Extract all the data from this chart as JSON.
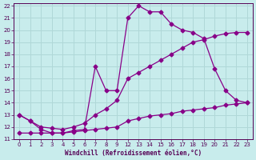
{
  "xlabel": "Windchill (Refroidissement éolien,°C)",
  "bg_color": "#c8ecec",
  "grid_color": "#b0d8d8",
  "line_color": "#880088",
  "xlim": [
    -0.5,
    23.5
  ],
  "ylim": [
    11,
    22.2
  ],
  "yticks": [
    11,
    12,
    13,
    14,
    15,
    16,
    17,
    18,
    19,
    20,
    21,
    22
  ],
  "xtick_positions": [
    0,
    1,
    2,
    3,
    4,
    5,
    6,
    7,
    8,
    9,
    12,
    13,
    14,
    15,
    16,
    17,
    18,
    19,
    20,
    21,
    22,
    23
  ],
  "xtick_labels": [
    "0",
    "1",
    "2",
    "3",
    "4",
    "5",
    "6",
    "7",
    "8",
    "9",
    "12",
    "13",
    "14",
    "15",
    "16",
    "17",
    "18",
    "19",
    "20",
    "21",
    "22",
    "23"
  ],
  "line1_x": [
    0,
    1,
    2,
    3,
    4,
    5,
    6,
    7,
    8,
    9,
    12,
    13,
    14,
    15,
    16,
    17,
    18,
    19,
    20,
    21,
    22,
    23
  ],
  "line1_y": [
    13.0,
    12.5,
    11.8,
    11.5,
    11.5,
    11.7,
    11.8,
    17.0,
    15.0,
    15.0,
    21.0,
    22.0,
    21.5,
    21.5,
    20.5,
    20.0,
    19.8,
    19.3,
    16.8,
    15.0,
    14.2,
    14.0
  ],
  "line2_x": [
    0,
    1,
    2,
    3,
    4,
    5,
    6,
    7,
    8,
    9,
    12,
    13,
    14,
    15,
    16,
    17,
    18,
    19,
    20,
    21,
    22,
    23
  ],
  "line2_y": [
    13.0,
    12.5,
    12.0,
    11.9,
    11.8,
    12.0,
    12.3,
    13.0,
    13.5,
    14.2,
    16.0,
    16.5,
    17.0,
    17.5,
    18.0,
    18.5,
    19.0,
    19.2,
    19.5,
    19.7,
    19.8,
    19.8
  ],
  "line3_x": [
    0,
    1,
    2,
    3,
    4,
    5,
    6,
    7,
    8,
    9,
    12,
    13,
    14,
    15,
    16,
    17,
    18,
    19,
    20,
    21,
    22,
    23
  ],
  "line3_y": [
    11.5,
    11.5,
    11.5,
    11.5,
    11.5,
    11.6,
    11.7,
    11.8,
    11.9,
    12.0,
    12.5,
    12.7,
    12.9,
    13.0,
    13.1,
    13.3,
    13.4,
    13.5,
    13.6,
    13.8,
    13.9,
    14.0
  ]
}
